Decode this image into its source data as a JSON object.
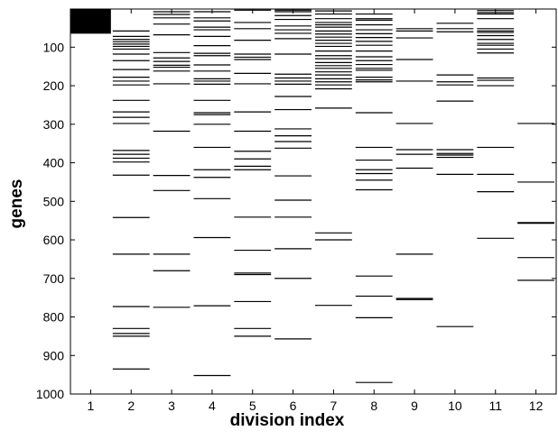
{
  "chart_data": {
    "type": "heatmap",
    "xlabel": "division index",
    "ylabel": "genes",
    "xlim": [
      0.5,
      12.5
    ],
    "ylim": [
      1,
      1000
    ],
    "y_reversed": true,
    "x_ticks": [
      "1",
      "2",
      "3",
      "4",
      "5",
      "6",
      "7",
      "8",
      "9",
      "10",
      "11",
      "12"
    ],
    "y_ticks": [
      100,
      200,
      300,
      400,
      500,
      600,
      700,
      800,
      900,
      1000
    ],
    "grid": false,
    "colors": {
      "mark": "#000000",
      "background": "#ffffff"
    },
    "columns": [
      {
        "division": 1,
        "genes": [],
        "block": [
          1,
          65
        ]
      },
      {
        "division": 2,
        "genes": [
          58,
          72,
          80,
          86,
          92,
          98,
          105,
          118,
          135,
          158,
          178,
          188,
          198,
          238,
          268,
          282,
          298,
          368,
          378,
          388,
          398,
          432,
          542,
          637,
          773,
          830,
          843,
          850,
          935
        ]
      },
      {
        "division": 3,
        "genes": [
          8,
          15,
          24,
          40,
          68,
          114,
          128,
          137,
          147,
          152,
          162,
          195,
          318,
          433,
          472,
          637,
          680,
          775
        ]
      },
      {
        "division": 4,
        "genes": [
          8,
          24,
          32,
          48,
          55,
          72,
          96,
          116,
          122,
          146,
          162,
          182,
          188,
          196,
          238,
          270,
          275,
          300,
          360,
          418,
          438,
          493,
          594,
          771,
          952
        ]
      },
      {
        "division": 5,
        "genes": [
          4,
          36,
          52,
          82,
          118,
          126,
          132,
          168,
          195,
          268,
          318,
          370,
          390,
          409,
          418,
          541,
          627,
          686,
          690,
          760,
          830,
          850
        ]
      },
      {
        "division": 6,
        "genes": [
          4,
          8,
          18,
          28,
          45,
          55,
          64,
          78,
          118,
          170,
          180,
          188,
          196,
          228,
          262,
          312,
          330,
          345,
          362,
          434,
          497,
          541,
          623,
          700,
          857
        ]
      },
      {
        "division": 7,
        "genes": [
          6,
          14,
          26,
          36,
          42,
          48,
          58,
          66,
          74,
          82,
          90,
          98,
          110,
          122,
          130,
          140,
          148,
          155,
          164,
          172,
          182,
          190,
          198,
          208,
          258,
          582,
          600,
          770
        ]
      },
      {
        "division": 8,
        "genes": [
          14,
          26,
          30,
          42,
          55,
          65,
          75,
          85,
          95,
          110,
          125,
          135,
          145,
          155,
          160,
          178,
          185,
          190,
          270,
          360,
          393,
          418,
          428,
          445,
          470,
          694,
          746,
          802,
          970
        ]
      },
      {
        "division": 9,
        "genes": [
          52,
          58,
          76,
          132,
          188,
          298,
          366,
          378,
          414,
          637,
          752,
          755
        ]
      },
      {
        "division": 10,
        "genes": [
          38,
          52,
          60,
          172,
          190,
          198,
          240,
          366,
          376,
          380,
          386,
          430,
          825
        ]
      },
      {
        "division": 11,
        "genes": [
          5,
          10,
          14,
          26,
          52,
          58,
          62,
          70,
          80,
          90,
          95,
          105,
          115,
          180,
          186,
          200,
          360,
          430,
          475,
          596
        ]
      },
      {
        "division": 12,
        "genes": [
          298,
          450,
          555,
          557,
          646,
          705
        ]
      }
    ]
  }
}
